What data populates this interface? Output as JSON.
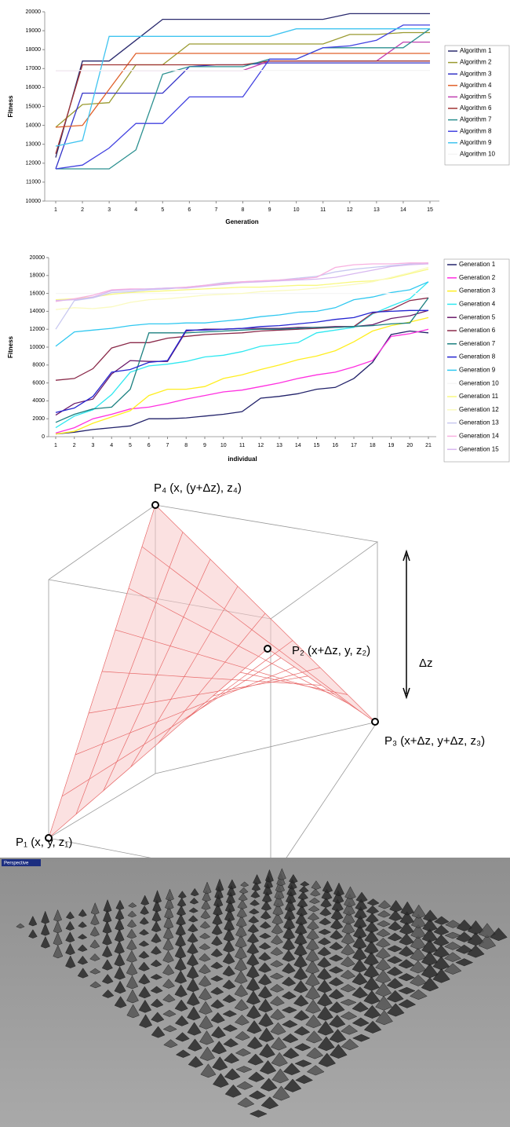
{
  "chart_data": [
    {
      "type": "line",
      "xlabel": "Generation",
      "ylabel": "Fitness",
      "categories": [
        "1",
        "2",
        "3",
        "4",
        "5",
        "6",
        "7",
        "8",
        "9",
        "10",
        "11",
        "12",
        "13",
        "14",
        "15"
      ],
      "ylim": [
        10000,
        20000
      ],
      "yticks": [
        10000,
        11000,
        12000,
        13000,
        14000,
        15000,
        16000,
        17000,
        18000,
        19000,
        20000
      ],
      "series": [
        {
          "name": "Algorithm 1",
          "color": "#2a2a6e",
          "values": [
            12300,
            17400,
            17400,
            18500,
            19600,
            19600,
            19600,
            19600,
            19600,
            19600,
            19600,
            19900,
            19900,
            19900,
            19900
          ]
        },
        {
          "name": "Algorithm 2",
          "color": "#9a9a30",
          "values": [
            13900,
            15100,
            15200,
            17200,
            17200,
            18300,
            18300,
            18300,
            18300,
            18300,
            18300,
            18800,
            18800,
            18900,
            18900
          ]
        },
        {
          "name": "Algorithm 3",
          "color": "#3434c8",
          "values": [
            11700,
            15700,
            15700,
            15700,
            15700,
            17100,
            17200,
            17200,
            17300,
            17300,
            17300,
            17300,
            17300,
            17300,
            17300
          ]
        },
        {
          "name": "Algorithm 4",
          "color": "#e0602a",
          "values": [
            13900,
            14000,
            15900,
            17800,
            17800,
            17800,
            17800,
            17800,
            17800,
            17800,
            17800,
            17800,
            17800,
            17800,
            17800
          ]
        },
        {
          "name": "Algorithm 5",
          "color": "#c040b0",
          "values": [
            16900,
            16900,
            16900,
            16900,
            16900,
            16900,
            16900,
            16900,
            17400,
            17400,
            17400,
            17400,
            17400,
            18400,
            18400
          ]
        },
        {
          "name": "Algorithm 6",
          "color": "#a03434",
          "values": [
            12500,
            17200,
            17200,
            17200,
            17200,
            17200,
            17200,
            17200,
            17400,
            17400,
            17400,
            17400,
            17400,
            17400,
            17400
          ]
        },
        {
          "name": "Algorithm 7",
          "color": "#2c9090",
          "values": [
            11700,
            11700,
            11700,
            12700,
            16700,
            17100,
            17100,
            17100,
            17500,
            17500,
            18100,
            18100,
            18100,
            18100,
            19100
          ]
        },
        {
          "name": "Algorithm 8",
          "color": "#4242e0",
          "values": [
            11700,
            11900,
            12800,
            14100,
            14100,
            15500,
            15500,
            15500,
            17500,
            17500,
            18100,
            18200,
            18500,
            19300,
            19300
          ]
        },
        {
          "name": "Algorithm 9",
          "color": "#40c4f0",
          "values": [
            12900,
            13200,
            18700,
            18700,
            18700,
            18700,
            18700,
            18700,
            18700,
            19100,
            19100,
            19100,
            19100,
            19100,
            19100
          ]
        },
        {
          "name": "Algorithm 10",
          "color": "#f4f4f4",
          "values": [
            16900,
            16900,
            16900,
            16900,
            16900,
            16900,
            16900,
            16900,
            16900,
            16900,
            16900,
            16900,
            16900,
            16900,
            16900
          ]
        }
      ]
    },
    {
      "type": "line",
      "xlabel": "individual",
      "ylabel": "Fitness",
      "categories": [
        "1",
        "2",
        "3",
        "4",
        "5",
        "6",
        "7",
        "8",
        "9",
        "10",
        "11",
        "12",
        "13",
        "14",
        "15",
        "16",
        "17",
        "18",
        "19",
        "20",
        "21"
      ],
      "ylim": [
        0,
        20000
      ],
      "yticks": [
        0,
        2000,
        4000,
        6000,
        8000,
        10000,
        12000,
        14000,
        16000,
        18000,
        20000
      ],
      "series": [
        {
          "name": "Generation 1",
          "color": "#22226a",
          "values": [
            300,
            500,
            800,
            1000,
            1200,
            2000,
            2000,
            2100,
            2300,
            2500,
            2800,
            4300,
            4500,
            4800,
            5300,
            5500,
            6500,
            8300,
            11400,
            11800,
            11600
          ]
        },
        {
          "name": "Generation 2",
          "color": "#ff30e0",
          "values": [
            400,
            1000,
            2000,
            2500,
            3100,
            3300,
            3700,
            4200,
            4600,
            5000,
            5200,
            5600,
            6000,
            6500,
            6900,
            7200,
            7800,
            8500,
            11200,
            11500,
            12000
          ]
        },
        {
          "name": "Generation 3",
          "color": "#ffee20",
          "values": [
            300,
            600,
            1500,
            2200,
            2900,
            4600,
            5300,
            5300,
            5600,
            6500,
            6900,
            7500,
            8000,
            8600,
            9000,
            9600,
            10600,
            11800,
            12400,
            12800,
            13300
          ]
        },
        {
          "name": "Generation 4",
          "color": "#30e8f0",
          "values": [
            1000,
            2300,
            3000,
            4700,
            7200,
            7900,
            8100,
            8400,
            8900,
            9100,
            9500,
            10100,
            10300,
            10500,
            11600,
            11900,
            12200,
            13700,
            14600,
            15400,
            17300
          ]
        },
        {
          "name": "Generation 5",
          "color": "#6a1a6a",
          "values": [
            2400,
            3700,
            4200,
            7000,
            8500,
            8400,
            8400,
            11800,
            12000,
            12000,
            12100,
            12100,
            12100,
            12200,
            12200,
            12300,
            12300,
            12500,
            13200,
            13500,
            14100
          ]
        },
        {
          "name": "Generation 6",
          "color": "#8a2a4a",
          "values": [
            6300,
            6500,
            7600,
            9900,
            10500,
            10500,
            11000,
            11200,
            11400,
            11500,
            11600,
            11800,
            11900,
            12000,
            12100,
            12200,
            12300,
            13800,
            14200,
            15200,
            15500
          ]
        },
        {
          "name": "Generation 7",
          "color": "#1c8080",
          "values": [
            1600,
            2500,
            3100,
            3300,
            5300,
            11600,
            11600,
            11600,
            11700,
            11800,
            11900,
            12000,
            12000,
            12100,
            12200,
            12200,
            12300,
            12400,
            12600,
            12700,
            15500
          ]
        },
        {
          "name": "Generation 8",
          "color": "#2424d0",
          "values": [
            2700,
            3200,
            4500,
            7200,
            7500,
            8300,
            8500,
            11900,
            11900,
            12000,
            12100,
            12300,
            12400,
            12600,
            12800,
            13100,
            13300,
            13900,
            14000,
            14100,
            14100
          ]
        },
        {
          "name": "Generation 9",
          "color": "#30c8f0",
          "values": [
            10100,
            11700,
            11900,
            12100,
            12400,
            12600,
            12600,
            12700,
            12700,
            12900,
            13100,
            13400,
            13600,
            13900,
            14000,
            14400,
            15300,
            15600,
            16100,
            16400,
            17300
          ]
        },
        {
          "name": "Generation 10",
          "color": "#f6f6f6",
          "values": [
            16000,
            16000,
            16000,
            16000,
            16000,
            16000,
            16000,
            16000,
            16000,
            16000,
            16000,
            16000,
            16000,
            16000,
            16000,
            16000,
            16000,
            16000,
            16000,
            16000,
            16000
          ]
        },
        {
          "name": "Generation 11",
          "color": "#f8f880",
          "values": [
            15300,
            15400,
            15600,
            15900,
            16100,
            16200,
            16300,
            16400,
            16500,
            16600,
            16700,
            16700,
            16800,
            16900,
            16900,
            17100,
            17300,
            17400,
            17700,
            18200,
            18700
          ]
        },
        {
          "name": "Generation 12",
          "color": "#fafac0",
          "values": [
            14200,
            14400,
            14300,
            14500,
            15000,
            15300,
            15400,
            15600,
            15800,
            15900,
            16000,
            16200,
            16300,
            16400,
            16600,
            16800,
            17000,
            17300,
            17800,
            18300,
            18900
          ]
        },
        {
          "name": "Generation 13",
          "color": "#c8c8f0",
          "values": [
            12000,
            15200,
            15500,
            16100,
            16200,
            16400,
            16500,
            16700,
            16900,
            17200,
            17300,
            17400,
            17500,
            17700,
            17900,
            18400,
            18700,
            18900,
            19100,
            19300,
            19400
          ]
        },
        {
          "name": "Generation 14",
          "color": "#f8b0e0",
          "values": [
            15100,
            15400,
            15800,
            16400,
            16500,
            16500,
            16600,
            16700,
            16900,
            17100,
            17300,
            17400,
            17500,
            17600,
            17800,
            18900,
            19200,
            19300,
            19300,
            19400,
            19400
          ]
        },
        {
          "name": "Generation 15",
          "color": "#d8b8f0",
          "values": [
            15200,
            15300,
            15600,
            16300,
            16400,
            16500,
            16600,
            16600,
            16800,
            17000,
            17200,
            17300,
            17400,
            17500,
            17600,
            17800,
            18200,
            18600,
            19000,
            19200,
            19300
          ]
        }
      ]
    }
  ],
  "diagram": {
    "labels": [
      "P₄ (x, (y+Δz), z₄)",
      "P₂ (x+Δz, y, z₂)",
      "P₃ (x+Δz, y+Δz, z₃)",
      "P₁ (x, y, z₁)",
      "Δz"
    ]
  },
  "viewport": {
    "label": "Perspective"
  }
}
